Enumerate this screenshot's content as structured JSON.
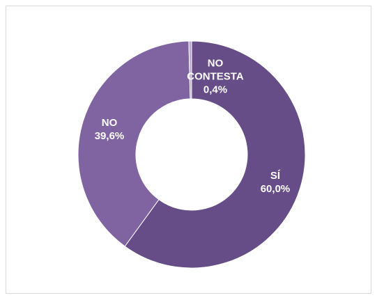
{
  "chart_data": {
    "type": "donut",
    "categories": [
      "SÍ",
      "NO",
      "NO CONTESTA"
    ],
    "values": [
      60.0,
      39.6,
      0.4
    ],
    "value_labels": [
      "60,0%",
      "39,6%",
      "0,4%"
    ],
    "colors": [
      "#664d87",
      "#8064a2",
      "#b8a9cd"
    ]
  }
}
